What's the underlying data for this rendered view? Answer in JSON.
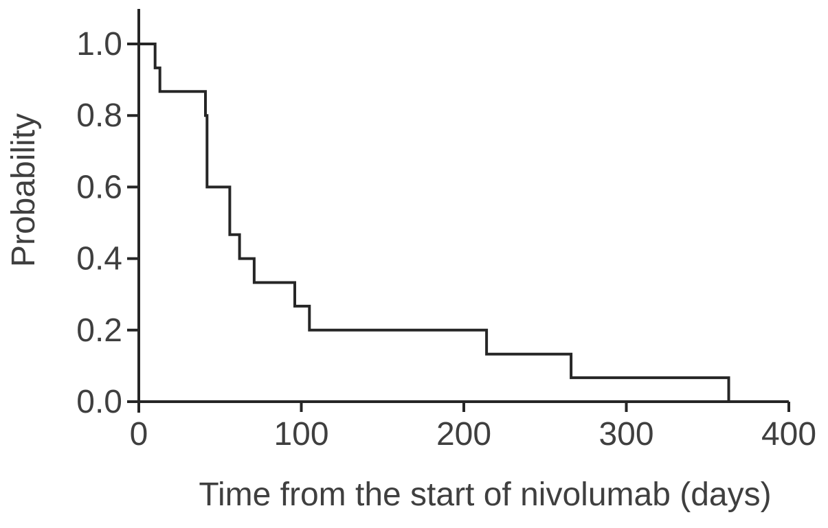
{
  "figure": {
    "background_color": "#ffffff",
    "line_color": "#262626",
    "text_color": "#3f3f3f"
  },
  "chart_data": {
    "type": "line",
    "subtype": "kaplan-meier-step-survival",
    "title": "",
    "xlabel": "Time from the start of nivolumab (days)",
    "ylabel": "Probability",
    "xlim": [
      0,
      400
    ],
    "ylim": [
      0.0,
      1.0
    ],
    "x_ticks": [
      0,
      100,
      200,
      300,
      400
    ],
    "x_tick_labels": [
      "0",
      "100",
      "200",
      "300",
      "400"
    ],
    "y_ticks": [
      0.0,
      0.2,
      0.4,
      0.6,
      0.8,
      1.0
    ],
    "y_tick_labels": [
      "0.0",
      "0.2",
      "0.4",
      "0.6",
      "0.8",
      "1.0"
    ],
    "grid": false,
    "legend_position": "none",
    "series": [
      {
        "name": "survival-curve",
        "style": "step-post",
        "points": [
          [
            0,
            1.0
          ],
          [
            10,
            0.933
          ],
          [
            13,
            0.867
          ],
          [
            41,
            0.8
          ],
          [
            42,
            0.6
          ],
          [
            56,
            0.467
          ],
          [
            62,
            0.4
          ],
          [
            71,
            0.333
          ],
          [
            96,
            0.267
          ],
          [
            105,
            0.2
          ],
          [
            214,
            0.133
          ],
          [
            266,
            0.067
          ],
          [
            363,
            0.0
          ]
        ]
      }
    ]
  }
}
